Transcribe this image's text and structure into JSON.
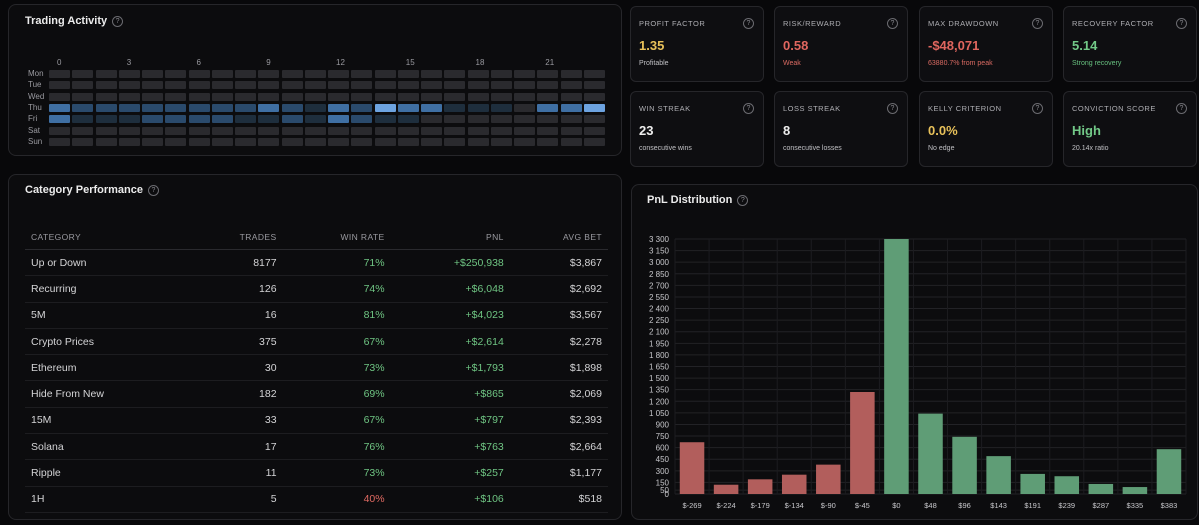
{
  "trading_activity": {
    "title": "Trading Activity",
    "hour_labels": [
      "0",
      "3",
      "6",
      "9",
      "12",
      "15",
      "18",
      "21"
    ],
    "days": [
      "Mon",
      "Tue",
      "Wed",
      "Thu",
      "Fri",
      "Sat",
      "Sun"
    ],
    "intensity": [
      [
        0,
        0,
        0,
        0,
        0,
        0,
        0,
        0,
        0,
        0,
        0,
        0,
        0,
        0,
        0,
        0,
        0,
        0,
        0,
        0,
        0,
        0,
        0,
        0
      ],
      [
        0,
        0,
        0,
        0,
        0,
        0,
        0,
        0,
        0,
        0,
        0,
        0,
        0,
        0,
        0,
        0,
        0,
        0,
        0,
        0,
        0,
        0,
        0,
        0
      ],
      [
        0,
        0,
        0,
        0,
        0,
        0,
        0,
        0,
        0,
        0,
        0,
        0,
        0,
        0,
        0,
        0,
        0,
        0,
        0,
        0,
        0,
        0,
        0,
        0
      ],
      [
        3,
        2,
        2,
        2,
        2,
        2,
        2,
        2,
        2,
        3,
        2,
        1,
        3,
        2,
        4,
        3,
        3,
        1,
        1,
        1,
        0,
        3,
        3,
        4
      ],
      [
        3,
        1,
        1,
        1,
        2,
        2,
        2,
        2,
        1,
        1,
        2,
        1,
        3,
        2,
        1,
        1,
        0,
        0,
        0,
        0,
        0,
        0,
        0,
        0
      ],
      [
        0,
        0,
        0,
        0,
        0,
        0,
        0,
        0,
        0,
        0,
        0,
        0,
        0,
        0,
        0,
        0,
        0,
        0,
        0,
        0,
        0,
        0,
        0,
        0
      ],
      [
        0,
        0,
        0,
        0,
        0,
        0,
        0,
        0,
        0,
        0,
        0,
        0,
        0,
        0,
        0,
        0,
        0,
        0,
        0,
        0,
        0,
        0,
        0,
        0
      ]
    ],
    "palette": [
      "#2a2a2e",
      "#1e2e3d",
      "#2a4a6c",
      "#3f6fa3",
      "#6da3e0"
    ]
  },
  "category_performance": {
    "title": "Category Performance",
    "columns": [
      "CATEGORY",
      "TRADES",
      "WIN RATE",
      "PNL",
      "AVG BET"
    ],
    "rows": [
      {
        "category": "Up or Down",
        "trades": "8177",
        "win_rate": "71%",
        "pnl": "+$250,938",
        "avg_bet": "$3,867"
      },
      {
        "category": "Recurring",
        "trades": "126",
        "win_rate": "74%",
        "pnl": "+$6,048",
        "avg_bet": "$2,692"
      },
      {
        "category": "5M",
        "trades": "16",
        "win_rate": "81%",
        "pnl": "+$4,023",
        "avg_bet": "$3,567"
      },
      {
        "category": "Crypto Prices",
        "trades": "375",
        "win_rate": "67%",
        "pnl": "+$2,614",
        "avg_bet": "$2,278"
      },
      {
        "category": "Ethereum",
        "trades": "30",
        "win_rate": "73%",
        "pnl": "+$1,793",
        "avg_bet": "$1,898"
      },
      {
        "category": "Hide From New",
        "trades": "182",
        "win_rate": "69%",
        "pnl": "+$865",
        "avg_bet": "$2,069"
      },
      {
        "category": "15M",
        "trades": "33",
        "win_rate": "67%",
        "pnl": "+$797",
        "avg_bet": "$2,393"
      },
      {
        "category": "Solana",
        "trades": "17",
        "win_rate": "76%",
        "pnl": "+$763",
        "avg_bet": "$2,664"
      },
      {
        "category": "Ripple",
        "trades": "11",
        "win_rate": "73%",
        "pnl": "+$257",
        "avg_bet": "$1,177"
      },
      {
        "category": "1H",
        "trades": "5",
        "win_rate": "40%",
        "pnl": "+$106",
        "avg_bet": "$518"
      }
    ]
  },
  "metrics": [
    {
      "label": "PROFIT FACTOR",
      "value": "1.35",
      "sub": "Profitable",
      "value_color": "#e8c15a",
      "sub_color": "#c0c0c4"
    },
    {
      "label": "RISK/REWARD",
      "value": "0.58",
      "sub": "Weak",
      "value_color": "#e0665f",
      "sub_color": "#d96a62"
    },
    {
      "label": "MAX DRAWDOWN",
      "value": "-$48,071",
      "sub": "63880.7% from peak",
      "value_color": "#e0665f",
      "sub_color": "#d96a62"
    },
    {
      "label": "RECOVERY FACTOR",
      "value": "5.14",
      "sub": "Strong recovery",
      "value_color": "#72c988",
      "sub_color": "#67c07f"
    },
    {
      "label": "WIN STREAK",
      "value": "23",
      "sub": "consecutive wins",
      "value_color": "#eeeeee",
      "sub_color": "#c0c0c4"
    },
    {
      "label": "LOSS STREAK",
      "value": "8",
      "sub": "consecutive losses",
      "value_color": "#eeeeee",
      "sub_color": "#c0c0c4"
    },
    {
      "label": "KELLY CRITERION",
      "value": "0.0%",
      "sub": "No edge",
      "value_color": "#e8c15a",
      "sub_color": "#c0c0c4"
    },
    {
      "label": "CONVICTION SCORE",
      "value": "High",
      "sub": "20.14x ratio",
      "value_color": "#72c988",
      "sub_color": "#c0c0c4"
    }
  ],
  "pnl_distribution": {
    "title": "PnL Distribution"
  },
  "chart_data": {
    "type": "bar",
    "title": "PnL Distribution",
    "xlabel": "",
    "ylabel": "",
    "ylim": [
      0,
      3300
    ],
    "yticks": [
      0,
      50,
      150,
      300,
      450,
      600,
      750,
      900,
      1050,
      1200,
      1350,
      1500,
      1650,
      1800,
      1950,
      2100,
      2250,
      2400,
      2550,
      2700,
      2850,
      3000,
      3150,
      3300
    ],
    "ytick_labels": [
      "0",
      "50",
      "150",
      "300",
      "450",
      "600",
      "750",
      "900",
      "1 050",
      "1 200",
      "1 350",
      "1 500",
      "1 650",
      "1 800",
      "1 950",
      "2 100",
      "2 250",
      "2 400",
      "2 550",
      "2 700",
      "2 850",
      "3 000",
      "3 150",
      "3 300"
    ],
    "categories": [
      "$-269",
      "$-224",
      "$-179",
      "$-134",
      "$-90",
      "$-45",
      "$0",
      "$48",
      "$96",
      "$143",
      "$191",
      "$239",
      "$287",
      "$335",
      "$383"
    ],
    "values": [
      670,
      120,
      190,
      250,
      380,
      1320,
      3330,
      1040,
      740,
      490,
      260,
      230,
      130,
      90,
      580
    ],
    "colors": [
      "#b25e5c",
      "#b25e5c",
      "#b25e5c",
      "#b25e5c",
      "#b25e5c",
      "#b25e5c",
      "#5f9d76",
      "#5f9d76",
      "#5f9d76",
      "#5f9d76",
      "#5f9d76",
      "#5f9d76",
      "#5f9d76",
      "#5f9d76",
      "#5f9d76"
    ],
    "grid": true
  }
}
